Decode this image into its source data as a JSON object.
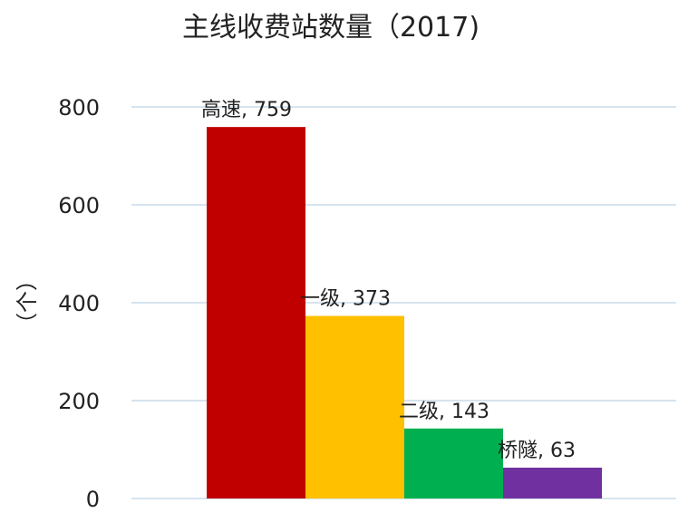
{
  "chart_data": {
    "type": "bar",
    "title": "主线收费站数量（2017)",
    "xlabel": "",
    "ylabel": "（个）",
    "ylim": [
      0,
      800
    ],
    "yticks": [
      0,
      200,
      400,
      600,
      800
    ],
    "grid": true,
    "categories": [
      "高速",
      "一级",
      "二级",
      "桥隧"
    ],
    "values": [
      759,
      373,
      143,
      63
    ],
    "data_labels": [
      "高速, 759",
      "一级, 373",
      "二级, 143",
      "桥隧, 63"
    ],
    "colors": [
      "#c00000",
      "#ffc000",
      "#00b050",
      "#7030a0"
    ]
  }
}
